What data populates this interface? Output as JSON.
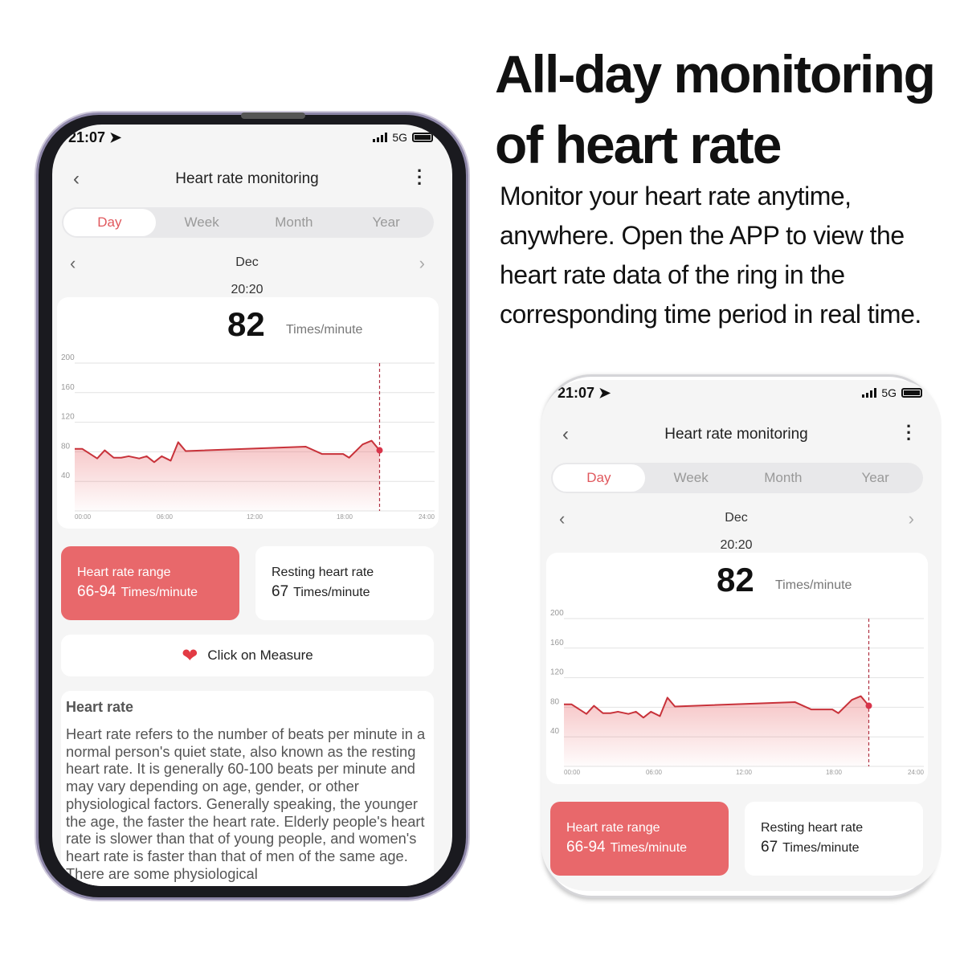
{
  "headline": {
    "line1": "All-day monitoring",
    "line2": "of heart rate"
  },
  "description": "Monitor your heart rate anytime, anywhere. Open the APP to view the heart rate data of the ring in the corresponding time period in real time.",
  "app": {
    "status": {
      "time": "21:07",
      "network": "5G"
    },
    "header": {
      "title": "Heart rate monitoring",
      "back_icon": "chevron-left-icon",
      "menu_icon": "more-vertical-icon"
    },
    "tabs": [
      {
        "label": "Day",
        "active": true
      },
      {
        "label": "Week"
      },
      {
        "label": "Month"
      },
      {
        "label": "Year"
      }
    ],
    "period": "Dec",
    "selected_time": "20:20",
    "current": {
      "value": "82",
      "unit": "Times/minute"
    },
    "range_card": {
      "label": "Heart rate range",
      "value": "66-94",
      "unit": "Times/minute"
    },
    "resting_card": {
      "label": "Resting heart rate",
      "value": "67",
      "unit": "Times/minute"
    },
    "measure_button": {
      "label": "Click on Measure",
      "icon": "heart-pulse-icon"
    },
    "info": {
      "title": "Heart rate",
      "text": "Heart rate refers to the number of beats per minute in a normal person's quiet state, also known as the resting heart rate. It is generally 60-100 beats per minute and may vary depending on age, gender, or other physiological factors. Generally speaking, the younger the age, the faster the heart rate. Elderly people's heart rate is slower than that of young people, and women's heart rate is faster than that of men of the same age. There are some physiological"
    },
    "colors": {
      "accent": "#e8686b",
      "line": "#c8323a",
      "tab_active": "#e0585d"
    }
  },
  "chart_data": {
    "type": "area",
    "x_ticks": [
      "00:00",
      "06:00",
      "12:00",
      "18:00",
      "24:00"
    ],
    "y_ticks": [
      200,
      160,
      120,
      80,
      40
    ],
    "xlim": [
      0,
      24
    ],
    "ylim": [
      0,
      200
    ],
    "x_unit": "hour",
    "x": [
      0,
      0.5,
      1.5,
      2.0,
      2.6,
      3.1,
      3.6,
      4.3,
      4.8,
      5.3,
      5.8,
      6.4,
      6.9,
      7.4,
      15.4,
      16.5,
      17.9,
      18.3,
      19.2,
      19.8,
      20.33
    ],
    "y": [
      84,
      84,
      71,
      82,
      72,
      72,
      74,
      71,
      74,
      66,
      74,
      68,
      93,
      81,
      87,
      77,
      77,
      72,
      90,
      95,
      82
    ],
    "cursor": {
      "x": 20.33,
      "y": 82
    },
    "grid": true
  }
}
